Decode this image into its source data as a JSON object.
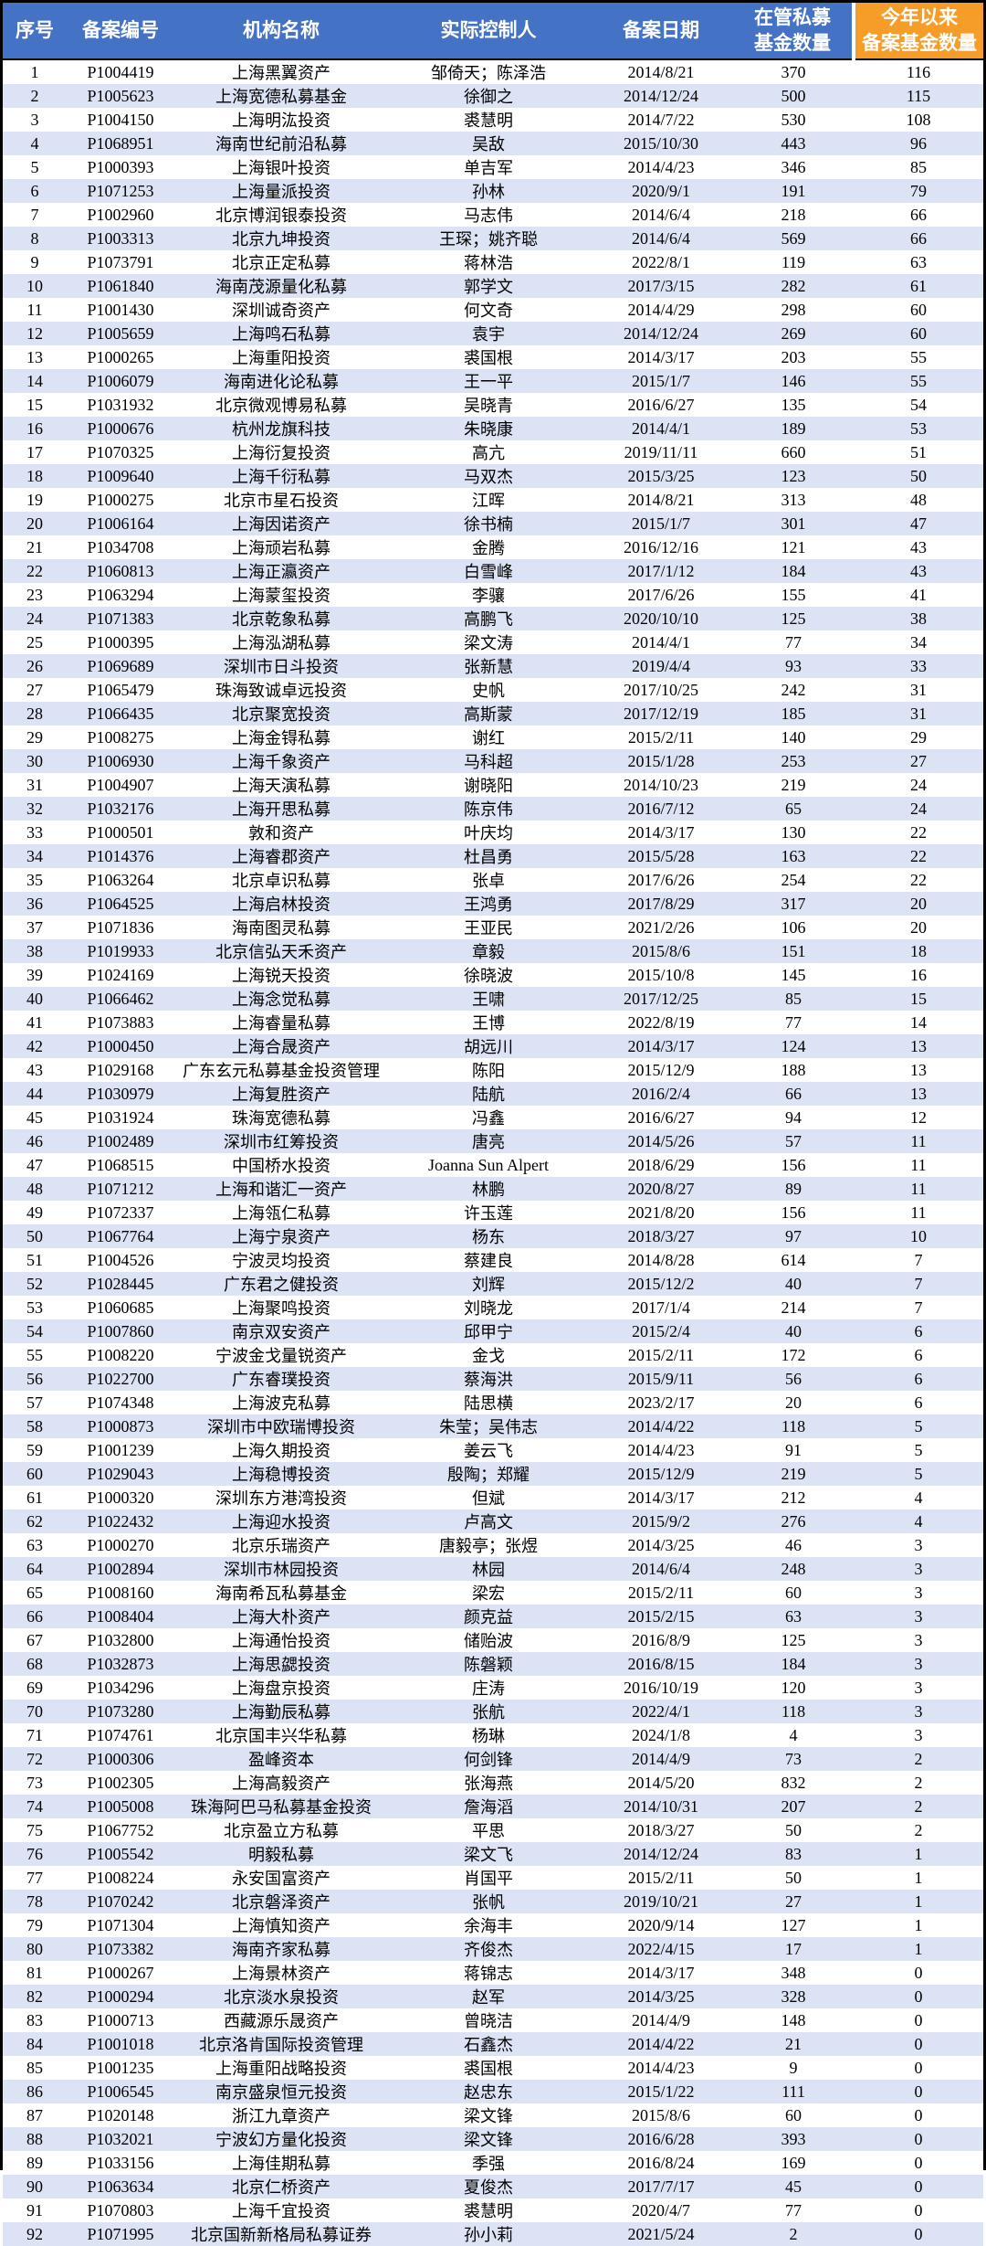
{
  "colors": {
    "header_blue": "#4472C4",
    "header_orange": "#F59D28",
    "header_text": "#FFFFFF",
    "row_stripe": "#DCE3F4",
    "text": "#000000",
    "border": "#000000"
  },
  "table": {
    "columns": [
      {
        "key": "index",
        "label": "序号"
      },
      {
        "key": "reg-no",
        "label": "备案编号"
      },
      {
        "key": "org-name",
        "label": "机构名称"
      },
      {
        "key": "controller",
        "label": "实际控制人"
      },
      {
        "key": "reg-date",
        "label": "备案日期"
      },
      {
        "key": "managed-fund-count",
        "label": "在管私募\n基金数量"
      },
      {
        "key": "ytd-registered-count",
        "label": "今年以来\n备案基金数量"
      }
    ],
    "rows": [
      [
        1,
        "P1004419",
        "上海黑翼资产",
        "邹倚天；陈泽浩",
        "2014/8/21",
        370,
        116
      ],
      [
        2,
        "P1005623",
        "上海宽德私募基金",
        "徐御之",
        "2014/12/24",
        500,
        115
      ],
      [
        3,
        "P1004150",
        "上海明汯投资",
        "裘慧明",
        "2014/7/22",
        530,
        108
      ],
      [
        4,
        "P1068951",
        "海南世纪前沿私募",
        "吴敌",
        "2015/10/30",
        443,
        96
      ],
      [
        5,
        "P1000393",
        "上海银叶投资",
        "单吉军",
        "2014/4/23",
        346,
        85
      ],
      [
        6,
        "P1071253",
        "上海量派投资",
        "孙林",
        "2020/9/1",
        191,
        79
      ],
      [
        7,
        "P1002960",
        "北京博润银泰投资",
        "马志伟",
        "2014/6/4",
        218,
        66
      ],
      [
        8,
        "P1003313",
        "北京九坤投资",
        "王琛；姚齐聪",
        "2014/6/4",
        569,
        66
      ],
      [
        9,
        "P1073791",
        "北京正定私募",
        "蒋林浩",
        "2022/8/1",
        119,
        63
      ],
      [
        10,
        "P1061840",
        "海南茂源量化私募",
        "郭学文",
        "2017/3/15",
        282,
        61
      ],
      [
        11,
        "P1001430",
        "深圳诚奇资产",
        "何文奇",
        "2014/4/29",
        298,
        60
      ],
      [
        12,
        "P1005659",
        "上海鸣石私募",
        "袁宇",
        "2014/12/24",
        269,
        60
      ],
      [
        13,
        "P1000265",
        "上海重阳投资",
        "裘国根",
        "2014/3/17",
        203,
        55
      ],
      [
        14,
        "P1006079",
        "海南进化论私募",
        "王一平",
        "2015/1/7",
        146,
        55
      ],
      [
        15,
        "P1031932",
        "北京微观博易私募",
        "吴晓青",
        "2016/6/27",
        135,
        54
      ],
      [
        16,
        "P1000676",
        "杭州龙旗科技",
        "朱晓康",
        "2014/4/1",
        189,
        53
      ],
      [
        17,
        "P1070325",
        "上海衍复投资",
        "高亢",
        "2019/11/11",
        660,
        51
      ],
      [
        18,
        "P1009640",
        "上海千衍私募",
        "马双杰",
        "2015/3/25",
        123,
        50
      ],
      [
        19,
        "P1000275",
        "北京市星石投资",
        "江晖",
        "2014/8/21",
        313,
        48
      ],
      [
        20,
        "P1006164",
        "上海因诺资产",
        "徐书楠",
        "2015/1/7",
        301,
        47
      ],
      [
        21,
        "P1034708",
        "上海顽岩私募",
        "金腾",
        "2016/12/16",
        121,
        43
      ],
      [
        22,
        "P1060813",
        "上海正瀛资产",
        "白雪峰",
        "2017/1/12",
        184,
        43
      ],
      [
        23,
        "P1063294",
        "上海蒙玺投资",
        "李骧",
        "2017/6/26",
        155,
        41
      ],
      [
        24,
        "P1071383",
        "北京乾象私募",
        "高鹏飞",
        "2020/10/10",
        125,
        38
      ],
      [
        25,
        "P1000395",
        "上海泓湖私募",
        "梁文涛",
        "2014/4/1",
        77,
        34
      ],
      [
        26,
        "P1069689",
        "深圳市日斗投资",
        "张新慧",
        "2019/4/4",
        93,
        33
      ],
      [
        27,
        "P1065479",
        "珠海致诚卓远投资",
        "史帆",
        "2017/10/25",
        242,
        31
      ],
      [
        28,
        "P1066435",
        "北京聚宽投资",
        "高斯蒙",
        "2017/12/19",
        185,
        31
      ],
      [
        29,
        "P1008275",
        "上海金锝私募",
        "谢红",
        "2015/2/11",
        140,
        29
      ],
      [
        30,
        "P1006930",
        "上海千象资产",
        "马科超",
        "2015/1/28",
        253,
        27
      ],
      [
        31,
        "P1004907",
        "上海天演私募",
        "谢晓阳",
        "2014/10/23",
        219,
        24
      ],
      [
        32,
        "P1032176",
        "上海开思私募",
        "陈京伟",
        "2016/7/12",
        65,
        24
      ],
      [
        33,
        "P1000501",
        "敦和资产",
        "叶庆均",
        "2014/3/17",
        130,
        22
      ],
      [
        34,
        "P1014376",
        "上海睿郡资产",
        "杜昌勇",
        "2015/5/28",
        163,
        22
      ],
      [
        35,
        "P1063264",
        "北京卓识私募",
        "张卓",
        "2017/6/26",
        254,
        22
      ],
      [
        36,
        "P1064525",
        "上海启林投资",
        "王鸿勇",
        "2017/8/29",
        317,
        20
      ],
      [
        37,
        "P1071836",
        "海南图灵私募",
        "王亚民",
        "2021/2/26",
        106,
        20
      ],
      [
        38,
        "P1019933",
        "北京信弘天禾资产",
        "章毅",
        "2015/8/6",
        151,
        18
      ],
      [
        39,
        "P1024169",
        "上海锐天投资",
        "徐晓波",
        "2015/10/8",
        145,
        16
      ],
      [
        40,
        "P1066462",
        "上海念觉私募",
        "王啸",
        "2017/12/25",
        85,
        15
      ],
      [
        41,
        "P1073883",
        "上海睿量私募",
        "王博",
        "2022/8/19",
        77,
        14
      ],
      [
        42,
        "P1000450",
        "上海合晟资产",
        "胡远川",
        "2014/3/17",
        124,
        13
      ],
      [
        43,
        "P1029168",
        "广东玄元私募基金投资管理",
        "陈阳",
        "2015/12/9",
        188,
        13
      ],
      [
        44,
        "P1030979",
        "上海复胜资产",
        "陆航",
        "2016/2/4",
        66,
        13
      ],
      [
        45,
        "P1031924",
        "珠海宽德私募",
        "冯鑫",
        "2016/6/27",
        94,
        12
      ],
      [
        46,
        "P1002489",
        "深圳市红筹投资",
        "唐亮",
        "2014/5/26",
        57,
        11
      ],
      [
        47,
        "P1068515",
        "中国桥水投资",
        "Joanna Sun Alpert",
        "2018/6/29",
        156,
        11
      ],
      [
        48,
        "P1071212",
        "上海和谐汇一资产",
        "林鹏",
        "2020/8/27",
        89,
        11
      ],
      [
        49,
        "P1072337",
        "上海瓴仁私募",
        "许玉莲",
        "2021/8/20",
        156,
        11
      ],
      [
        50,
        "P1067764",
        "上海宁泉资产",
        "杨东",
        "2018/3/27",
        97,
        10
      ],
      [
        51,
        "P1004526",
        "宁波灵均投资",
        "蔡建良",
        "2014/8/28",
        614,
        7
      ],
      [
        52,
        "P1028445",
        "广东君之健投资",
        "刘辉",
        "2015/12/2",
        40,
        7
      ],
      [
        53,
        "P1060685",
        "上海聚鸣投资",
        "刘晓龙",
        "2017/1/4",
        214,
        7
      ],
      [
        54,
        "P1007860",
        "南京双安资产",
        "邱甲宁",
        "2015/2/4",
        40,
        6
      ],
      [
        55,
        "P1008220",
        "宁波金戈量锐资产",
        "金戈",
        "2015/2/11",
        172,
        6
      ],
      [
        56,
        "P1022700",
        "广东睿璞投资",
        "蔡海洪",
        "2015/9/11",
        56,
        6
      ],
      [
        57,
        "P1074348",
        "上海波克私募",
        "陆思横",
        "2023/2/17",
        20,
        6
      ],
      [
        58,
        "P1000873",
        "深圳市中欧瑞博投资",
        "朱莹；吴伟志",
        "2014/4/22",
        118,
        5
      ],
      [
        59,
        "P1001239",
        "上海久期投资",
        "姜云飞",
        "2014/4/23",
        91,
        5
      ],
      [
        60,
        "P1029043",
        "上海稳博投资",
        "殷陶；郑耀",
        "2015/12/9",
        219,
        5
      ],
      [
        61,
        "P1000320",
        "深圳东方港湾投资",
        "但斌",
        "2014/3/17",
        212,
        4
      ],
      [
        62,
        "P1022432",
        "上海迎水投资",
        "卢高文",
        "2015/9/2",
        276,
        4
      ],
      [
        63,
        "P1000270",
        "北京乐瑞资产",
        "唐毅亭；张煜",
        "2014/3/25",
        46,
        3
      ],
      [
        64,
        "P1002894",
        "深圳市林园投资",
        "林园",
        "2014/6/4",
        248,
        3
      ],
      [
        65,
        "P1008160",
        "海南希瓦私募基金",
        "梁宏",
        "2015/2/11",
        60,
        3
      ],
      [
        66,
        "P1008404",
        "上海大朴资产",
        "颜克益",
        "2015/2/15",
        63,
        3
      ],
      [
        67,
        "P1032800",
        "上海通怡投资",
        "储贻波",
        "2016/8/9",
        125,
        3
      ],
      [
        68,
        "P1032873",
        "上海思勰投资",
        "陈磐颖",
        "2016/8/15",
        184,
        3
      ],
      [
        69,
        "P1034296",
        "上海盘京投资",
        "庄涛",
        "2016/10/19",
        120,
        3
      ],
      [
        70,
        "P1073280",
        "上海勤辰私募",
        "张航",
        "2022/4/1",
        118,
        3
      ],
      [
        71,
        "P1074761",
        "北京国丰兴华私募",
        "杨琳",
        "2024/1/8",
        4,
        3
      ],
      [
        72,
        "P1000306",
        "盈峰资本",
        "何剑锋",
        "2014/4/9",
        73,
        2
      ],
      [
        73,
        "P1002305",
        "上海高毅资产",
        "张海燕",
        "2014/5/20",
        832,
        2
      ],
      [
        74,
        "P1005008",
        "珠海阿巴马私募基金投资",
        "詹海滔",
        "2014/10/31",
        207,
        2
      ],
      [
        75,
        "P1067752",
        "北京盈立方私募",
        "平思",
        "2018/3/27",
        50,
        2
      ],
      [
        76,
        "P1005542",
        "明毅私募",
        "梁文飞",
        "2014/12/24",
        83,
        1
      ],
      [
        77,
        "P1008224",
        "永安国富资产",
        "肖国平",
        "2015/2/11",
        50,
        1
      ],
      [
        78,
        "P1070242",
        "北京磐泽资产",
        "张帆",
        "2019/10/21",
        27,
        1
      ],
      [
        79,
        "P1071304",
        "上海慎知资产",
        "余海丰",
        "2020/9/14",
        127,
        1
      ],
      [
        80,
        "P1073382",
        "海南齐家私募",
        "齐俊杰",
        "2022/4/15",
        17,
        1
      ],
      [
        81,
        "P1000267",
        "上海景林资产",
        "蒋锦志",
        "2014/3/17",
        348,
        0
      ],
      [
        82,
        "P1000294",
        "北京淡水泉投资",
        "赵军",
        "2014/3/25",
        328,
        0
      ],
      [
        83,
        "P1000713",
        "西藏源乐晟资产",
        "曾晓洁",
        "2014/4/9",
        148,
        0
      ],
      [
        84,
        "P1001018",
        "北京洛肯国际投资管理",
        "石鑫杰",
        "2014/4/22",
        21,
        0
      ],
      [
        85,
        "P1001235",
        "上海重阳战略投资",
        "裘国根",
        "2014/4/23",
        9,
        0
      ],
      [
        86,
        "P1006545",
        "南京盛泉恒元投资",
        "赵忠东",
        "2015/1/22",
        111,
        0
      ],
      [
        87,
        "P1020148",
        "浙江九章资产",
        "梁文锋",
        "2015/8/6",
        60,
        0
      ],
      [
        88,
        "P1032021",
        "宁波幻方量化投资",
        "梁文锋",
        "2016/6/28",
        393,
        0
      ],
      [
        89,
        "P1033156",
        "上海佳期私募",
        "季强",
        "2016/8/24",
        169,
        0
      ],
      [
        90,
        "P1063634",
        "北京仁桥资产",
        "夏俊杰",
        "2017/7/17",
        45,
        0
      ],
      [
        91,
        "P1070803",
        "上海千宜投资",
        "裘慧明",
        "2020/4/7",
        77,
        0
      ],
      [
        92,
        "P1071995",
        "北京国新新格局私募证券",
        "孙小莉",
        "2021/5/24",
        2,
        0
      ]
    ]
  }
}
